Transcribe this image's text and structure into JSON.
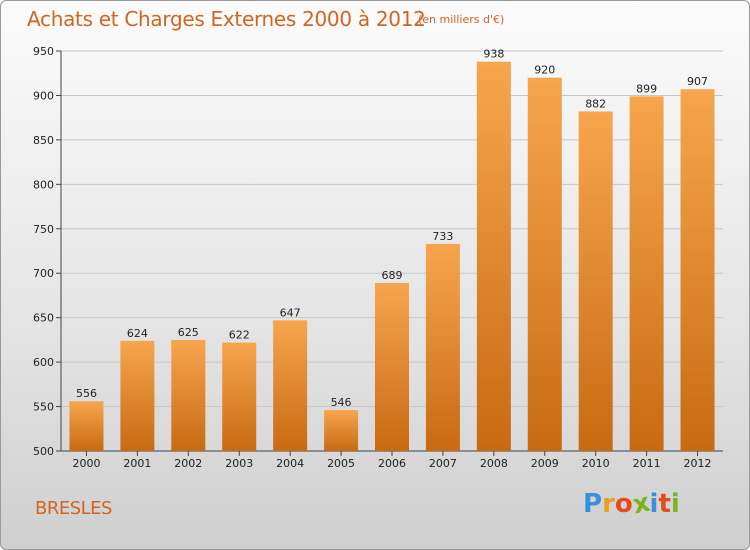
{
  "chart_data": {
    "type": "bar",
    "title": "Achats et Charges Externes 2000 à 2012",
    "unit_note": "(en milliers d'€)",
    "categories": [
      "2000",
      "2001",
      "2002",
      "2003",
      "2004",
      "2005",
      "2006",
      "2007",
      "2008",
      "2009",
      "2010",
      "2011",
      "2012"
    ],
    "values": [
      556,
      624,
      625,
      622,
      647,
      546,
      689,
      733,
      938,
      920,
      882,
      899,
      907
    ],
    "ylim": [
      500,
      950
    ],
    "yticks": [
      500,
      550,
      600,
      650,
      700,
      750,
      800,
      850,
      900,
      950
    ],
    "xlabel": "",
    "ylabel": "",
    "grid": true,
    "bar_color_light": "#f7a64e",
    "bar_color_dark": "#c86a12"
  },
  "footer": {
    "place_name": "BRESLES",
    "logo_letters": [
      "P",
      "r",
      "o",
      "x",
      "i",
      "t",
      "i"
    ],
    "logo_colors": [
      "#3b8fd9",
      "#e8a21c",
      "#e84a1c",
      "#7ab51d",
      "#3b8fd9",
      "#e84a1c",
      "#7ab51d"
    ]
  },
  "colors": {
    "title": "#d4641e",
    "grid": "#c8c8c8",
    "axis": "#444444"
  }
}
